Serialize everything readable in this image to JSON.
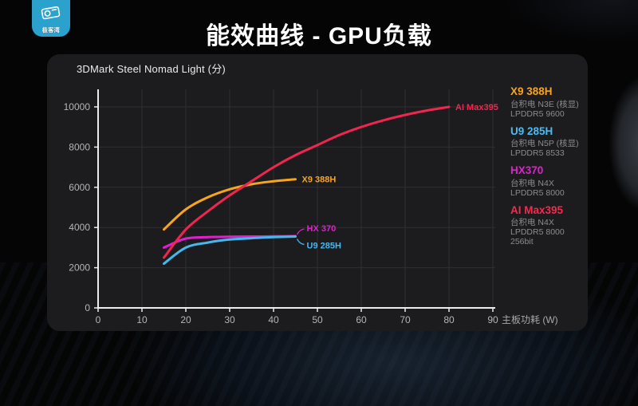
{
  "page": {
    "title": "能效曲线 - GPU负载"
  },
  "logo": {
    "brand": "极客湾"
  },
  "chart": {
    "title": "3DMark Steel Nomad Light (分)",
    "x_axis_label": "主板功耗 (W)"
  },
  "chart_data": {
    "type": "line",
    "title": "3DMark Steel Nomad Light (分)",
    "xlabel": "主板功耗 (W)",
    "ylabel": "3DMark Steel Nomad Light (分)",
    "xlim": [
      0,
      90
    ],
    "ylim": [
      0,
      10000
    ],
    "x_ticks": [
      0,
      10,
      20,
      30,
      40,
      50,
      60,
      70,
      80,
      90
    ],
    "y_ticks": [
      0,
      2000,
      4000,
      6000,
      8000,
      10000
    ],
    "grid": true,
    "legend_position": "right",
    "series": [
      {
        "name": "HX370",
        "chart_label": "HX 370",
        "color": "#e01fd0",
        "label_mode": "bracket-above",
        "points": [
          [
            15,
            3000
          ],
          [
            20,
            3450
          ],
          [
            25,
            3520
          ],
          [
            30,
            3540
          ],
          [
            35,
            3550
          ],
          [
            40,
            3560
          ],
          [
            45,
            3570
          ]
        ]
      },
      {
        "name": "U9 285H",
        "chart_label": "U9 285H",
        "color": "#45b8ee",
        "label_mode": "bracket-below",
        "points": [
          [
            15,
            2200
          ],
          [
            20,
            3000
          ],
          [
            25,
            3250
          ],
          [
            30,
            3400
          ],
          [
            35,
            3470
          ],
          [
            40,
            3520
          ],
          [
            45,
            3550
          ]
        ]
      },
      {
        "name": "X9 388H",
        "chart_label": "X9 388H",
        "color": "#f7a51b",
        "label_mode": "end-right",
        "points": [
          [
            15,
            3900
          ],
          [
            20,
            4900
          ],
          [
            25,
            5500
          ],
          [
            30,
            5900
          ],
          [
            35,
            6150
          ],
          [
            40,
            6300
          ],
          [
            45,
            6400
          ]
        ]
      },
      {
        "name": "AI Max395",
        "chart_label": "AI Max395",
        "color": "#f0264f",
        "label_mode": "end-right",
        "points": [
          [
            15,
            2500
          ],
          [
            20,
            3900
          ],
          [
            25,
            4800
          ],
          [
            30,
            5600
          ],
          [
            35,
            6300
          ],
          [
            40,
            7000
          ],
          [
            45,
            7600
          ],
          [
            50,
            8100
          ],
          [
            55,
            8600
          ],
          [
            60,
            9000
          ],
          [
            65,
            9330
          ],
          [
            70,
            9600
          ],
          [
            75,
            9820
          ],
          [
            80,
            10000
          ]
        ]
      }
    ]
  },
  "legend": {
    "items": [
      {
        "name": "X9 388H",
        "color": "#f6a41e",
        "line1": "台积电 N3E (核显)",
        "line2": "LPDDR5 9600",
        "line3": ""
      },
      {
        "name": "U9 285H",
        "color": "#4cbbf2",
        "line1": "台积电 N5P (核显)",
        "line2": "LPDDR5 8533",
        "line3": ""
      },
      {
        "name": "HX370",
        "color": "#e11fd0",
        "line1": "台积电 N4X",
        "line2": "LPDDR5 8000",
        "line3": ""
      },
      {
        "name": "AI Max395",
        "color": "#f42a4f",
        "line1": "台积电 N4X",
        "line2": "LPDDR5 8000",
        "line3": "256bit"
      }
    ]
  },
  "theme": {
    "panel_bg": "#1c1c1e",
    "page_bg": "#050506",
    "axis_color": "#ececee",
    "grid_color": "#2f2f32",
    "tick_label_color": "#b5b5b8",
    "axis_label_color": "#a7a7ac",
    "logo_bg": "#2aa2cd"
  }
}
